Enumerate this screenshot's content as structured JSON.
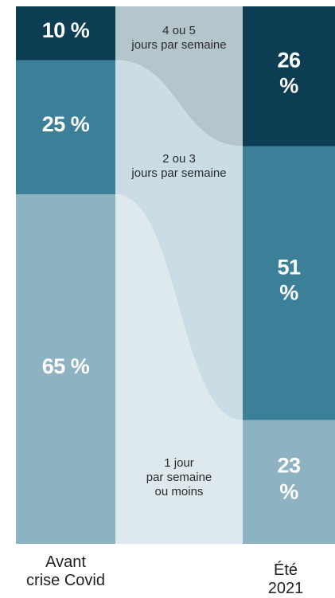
{
  "chart_data": {
    "type": "alluvial",
    "categories": [
      "Avant\ncrise Covid",
      "Été 2021"
    ],
    "ylim": [
      0,
      100
    ],
    "series": [
      {
        "name": "4 ou 5\njours par semaine",
        "color": "#0d3d52",
        "flow_color": "#b4c5cb",
        "values": [
          10,
          26
        ],
        "value_labels": [
          "10 %",
          "26 %"
        ]
      },
      {
        "name": "2 ou 3\njours par semaine",
        "color": "#3b7f98",
        "flow_color": "#cadde4",
        "values": [
          25,
          51
        ],
        "value_labels": [
          "25 %",
          "51 %"
        ]
      },
      {
        "name": "1 jour\npar semaine\nou moins",
        "color": "#8db3c2",
        "flow_color": "#dde9ed",
        "values": [
          65,
          23
        ],
        "value_labels": [
          "65 %",
          "23 %"
        ]
      }
    ]
  }
}
